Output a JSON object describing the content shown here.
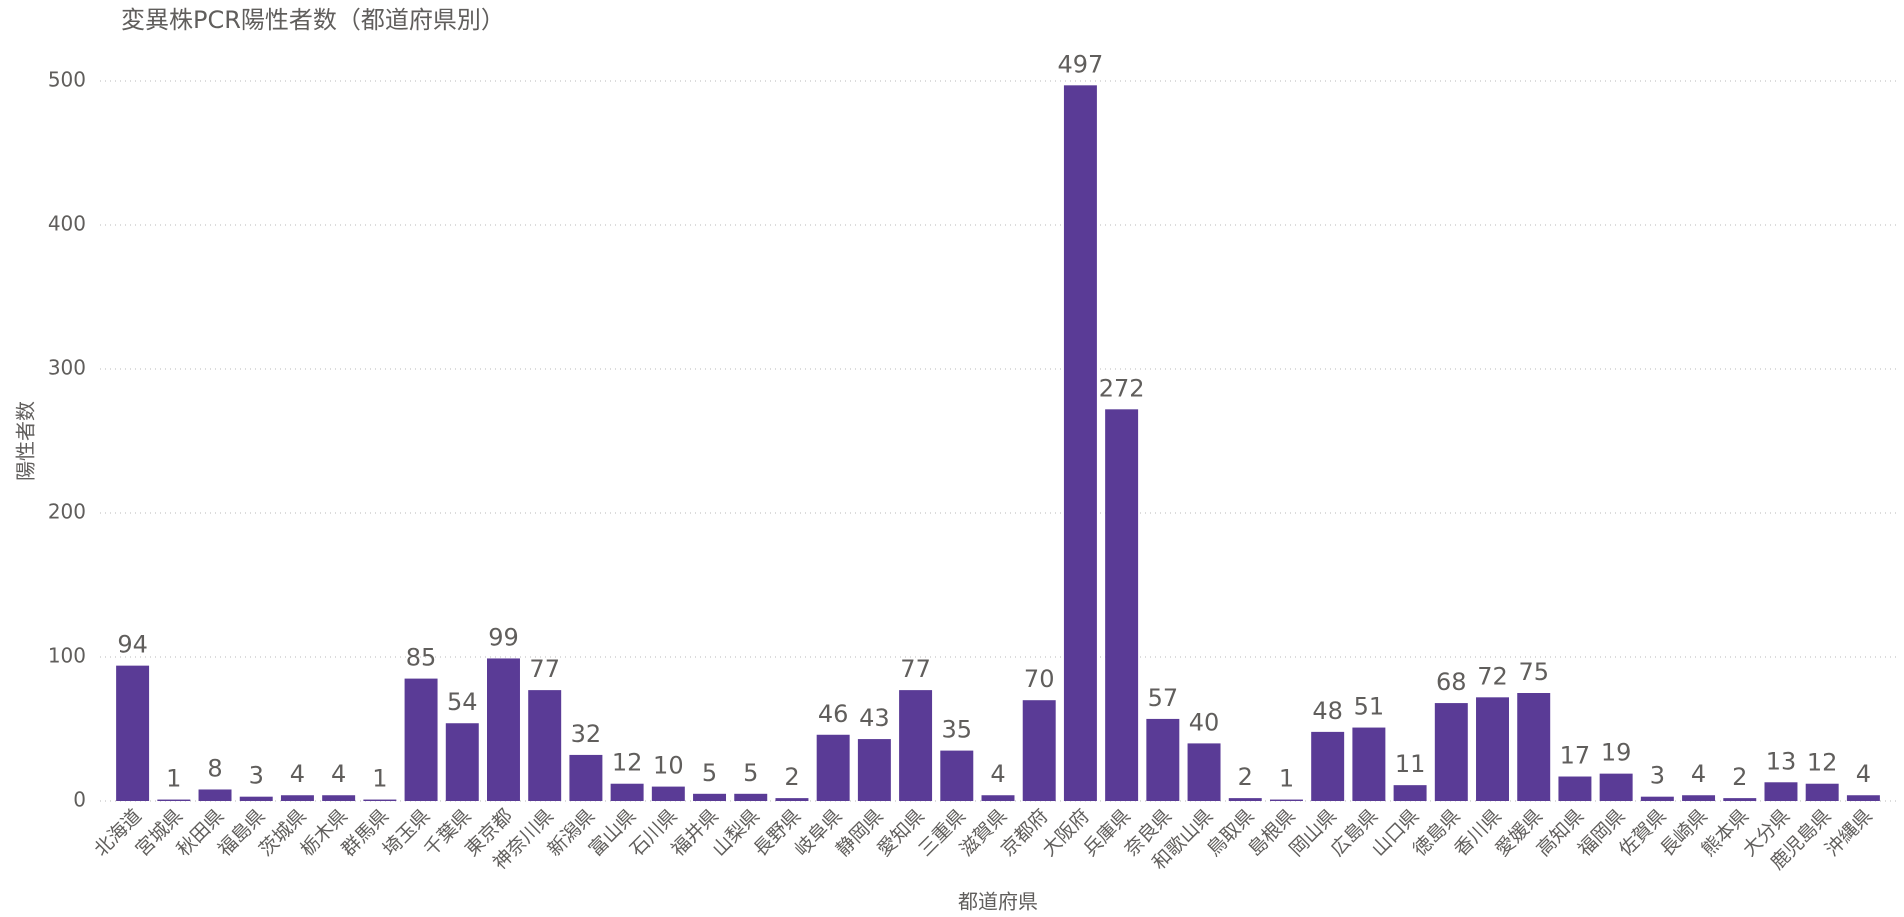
{
  "chart_data": {
    "type": "bar",
    "title": "変異株PCR陽性者数（都道府県別）",
    "x_label": "都道府県",
    "y_label": "陽性者数",
    "categories": [
      "北海道",
      "宮城県",
      "秋田県",
      "福島県",
      "茨城県",
      "栃木県",
      "群馬県",
      "埼玉県",
      "千葉県",
      "東京都",
      "神奈川県",
      "新潟県",
      "富山県",
      "石川県",
      "福井県",
      "山梨県",
      "長野県",
      "岐阜県",
      "静岡県",
      "愛知県",
      "三重県",
      "滋賀県",
      "京都府",
      "大阪府",
      "兵庫県",
      "奈良県",
      "和歌山県",
      "鳥取県",
      "島根県",
      "岡山県",
      "広島県",
      "山口県",
      "徳島県",
      "香川県",
      "愛媛県",
      "高知県",
      "福岡県",
      "佐賀県",
      "長崎県",
      "熊本県",
      "大分県",
      "鹿児島県",
      "沖縄県"
    ],
    "values": [
      94,
      1,
      8,
      3,
      4,
      4,
      1,
      85,
      54,
      99,
      77,
      32,
      12,
      10,
      5,
      5,
      2,
      46,
      43,
      77,
      35,
      4,
      70,
      497,
      272,
      57,
      40,
      2,
      1,
      48,
      51,
      11,
      68,
      72,
      75,
      17,
      19,
      3,
      4,
      2,
      13,
      12,
      4
    ],
    "color": "#5a3b96",
    "ylim": [
      0,
      500
    ],
    "yticks": [
      0,
      100,
      200,
      300,
      400,
      500
    ],
    "grid": true
  }
}
